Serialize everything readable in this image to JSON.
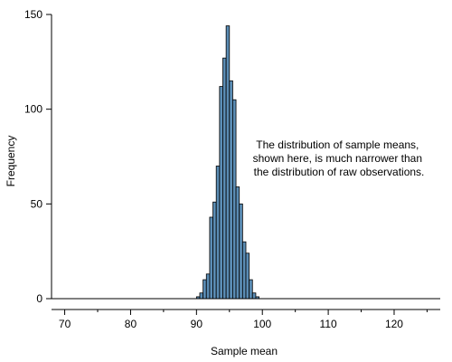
{
  "chart_data": {
    "type": "bar",
    "subtype": "histogram",
    "title": "",
    "xlabel": "Sample mean",
    "ylabel": "Frequency",
    "xlim": [
      68,
      127
    ],
    "ylim": [
      0,
      150
    ],
    "x_ticks": [
      70,
      80,
      90,
      100,
      110,
      120
    ],
    "x_minor_ticks": [
      75,
      85,
      95,
      105,
      115,
      125
    ],
    "y_ticks": [
      0,
      50,
      100,
      150
    ],
    "bin_width": 0.5,
    "grid": false,
    "bar_color": "#5b8db5",
    "bar_edge_color": "#000000",
    "bins": [
      {
        "x0": 90.0,
        "value": 1
      },
      {
        "x0": 90.5,
        "value": 3
      },
      {
        "x0": 91.0,
        "value": 10
      },
      {
        "x0": 91.5,
        "value": 13
      },
      {
        "x0": 92.0,
        "value": 43
      },
      {
        "x0": 92.5,
        "value": 51
      },
      {
        "x0": 93.0,
        "value": 70
      },
      {
        "x0": 93.5,
        "value": 112
      },
      {
        "x0": 94.0,
        "value": 127
      },
      {
        "x0": 94.5,
        "value": 144
      },
      {
        "x0": 95.0,
        "value": 115
      },
      {
        "x0": 95.5,
        "value": 105
      },
      {
        "x0": 96.0,
        "value": 59
      },
      {
        "x0": 96.5,
        "value": 50
      },
      {
        "x0": 97.0,
        "value": 30
      },
      {
        "x0": 97.5,
        "value": 24
      },
      {
        "x0": 98.0,
        "value": 10
      },
      {
        "x0": 98.5,
        "value": 3
      },
      {
        "x0": 99.0,
        "value": 1
      }
    ],
    "annotation": {
      "lines": [
        "The distribution of sample means,",
        "shown here, is much narrower than",
        "the distribution of raw observations."
      ]
    }
  }
}
